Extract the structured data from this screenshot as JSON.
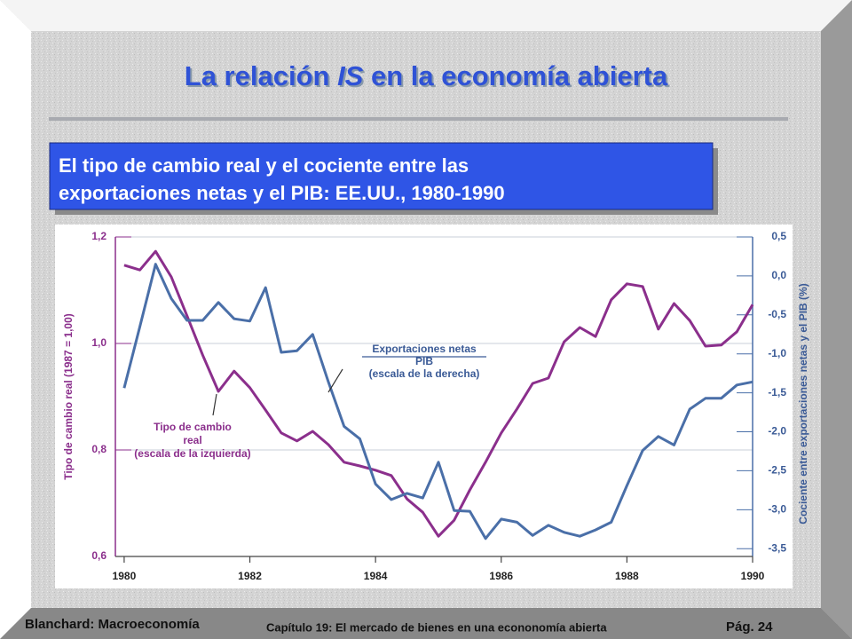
{
  "slide": {
    "title_parts": [
      "La relación ",
      "IS",
      " en la economía abierta"
    ],
    "subtitle_lines": [
      "El tipo de cambio real y el cociente entre las",
      "exportaciones netas y el PIB:  EE.UU., 1980-1990"
    ]
  },
  "footer": {
    "author": "Blanchard: Macroeconomía",
    "chapter": "Capítulo 19: El mercado de bienes en una econonomía abierta",
    "page": "Pág. 24"
  },
  "chart_data": {
    "type": "line",
    "ylabel": "Tipo de cambio real (1987 = 1,00)",
    "y2label": "Cociente entre exportaciones netas y el PIB (%)",
    "annotations": [
      {
        "lines": [
          "Exportaciones netas",
          "PIB",
          "(escala de la derecha)"
        ]
      },
      {
        "lines": [
          "Tipo de cambio",
          "real",
          "(escala de la izquierda)"
        ]
      }
    ],
    "x": [
      1980,
      1980.25,
      1980.5,
      1980.75,
      1981,
      1981.25,
      1981.5,
      1981.75,
      1982,
      1982.25,
      1982.5,
      1982.75,
      1983,
      1983.25,
      1983.5,
      1983.75,
      1984,
      1984.25,
      1984.5,
      1984.75,
      1985,
      1985.25,
      1985.5,
      1985.75,
      1986,
      1986.25,
      1986.5,
      1986.75,
      1987,
      1987.25,
      1987.5,
      1987.75,
      1988,
      1988.25,
      1988.5,
      1988.75,
      1989,
      1989.25,
      1989.5,
      1989.75,
      1990
    ],
    "xlim": [
      1979.86,
      1990
    ],
    "xticks": [
      1980,
      1982,
      1984,
      1986,
      1988,
      1990
    ],
    "ylim": [
      0.6,
      1.2
    ],
    "yticks": [
      {
        "value": 1.2,
        "label": "1,2"
      },
      {
        "value": 1.0,
        "label": "1,0"
      },
      {
        "value": 0.8,
        "label": "0,8"
      },
      {
        "value": 0.6,
        "label": "0,6"
      }
    ],
    "y2lim": [
      -3.6,
      0.5
    ],
    "y2ticks": [
      {
        "value": 0.5,
        "label": "0,5"
      },
      {
        "value": 0,
        "label": "0,0"
      },
      {
        "value": -0.5,
        "label": "-0,5"
      },
      {
        "value": -1.0,
        "label": "-1,0"
      },
      {
        "value": -1.5,
        "label": "-1,5"
      },
      {
        "value": -2.0,
        "label": "-2,0"
      },
      {
        "value": -2.5,
        "label": "-2,5"
      },
      {
        "value": -3.0,
        "label": "-3,0"
      },
      {
        "value": -3.5,
        "label": "-3,5"
      }
    ],
    "grid": true,
    "series": [
      {
        "name": "Tipo de cambio real",
        "color": "#8b2f8c",
        "axis": "y",
        "values": [
          1.147,
          1.138,
          1.173,
          1.125,
          1.052,
          0.978,
          0.91,
          0.948,
          0.917,
          0.875,
          0.832,
          0.817,
          0.835,
          0.81,
          0.777,
          0.77,
          0.762,
          0.752,
          0.708,
          0.683,
          0.638,
          0.668,
          0.725,
          0.777,
          0.832,
          0.877,
          0.925,
          0.935,
          1.003,
          1.03,
          1.013,
          1.082,
          1.112,
          1.107,
          1.027,
          1.075,
          1.043,
          0.995,
          0.997,
          1.022,
          1.073
        ]
      },
      {
        "name": "Exportaciones netas / PIB",
        "color": "#4a6fa8",
        "axis": "y2",
        "values": [
          -1.44,
          -0.65,
          0.15,
          -0.29,
          -0.57,
          -0.57,
          -0.34,
          -0.55,
          -0.58,
          -0.15,
          -0.98,
          -0.96,
          -0.75,
          -1.36,
          -1.93,
          -2.09,
          -2.67,
          -2.87,
          -2.79,
          -2.85,
          -2.39,
          -3.01,
          -3.02,
          -3.37,
          -3.12,
          -3.16,
          -3.33,
          -3.2,
          -3.29,
          -3.34,
          -3.26,
          -3.16,
          -2.69,
          -2.24,
          -2.06,
          -2.17,
          -1.71,
          -1.57,
          -1.57,
          -1.4,
          -1.36
        ]
      }
    ]
  }
}
